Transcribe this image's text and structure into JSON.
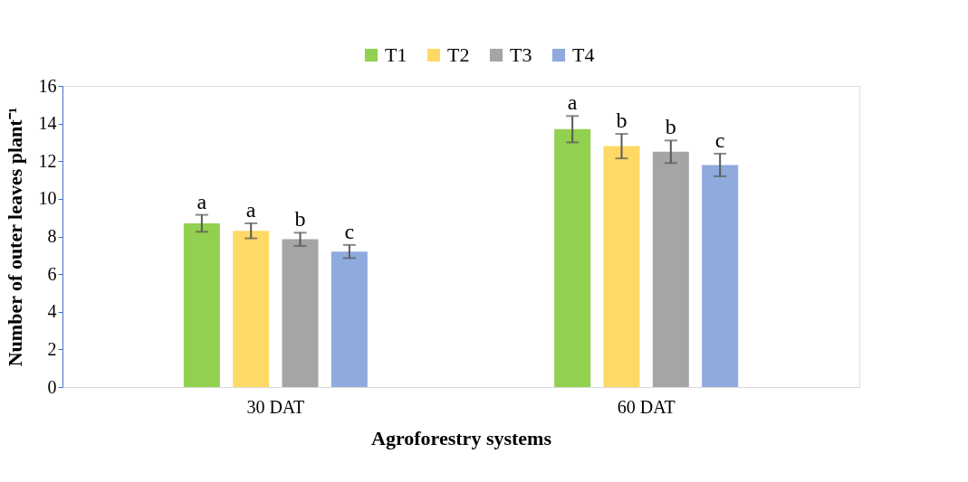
{
  "chart_data": {
    "type": "bar",
    "xlabel": "Agroforestry systems",
    "ylabel": "Number of outer leaves plant⁻¹",
    "categories": [
      "30 DAT",
      "60 DAT"
    ],
    "series": [
      {
        "name": "T1",
        "color": "#92d050",
        "values": [
          8.7,
          13.7
        ],
        "errors": [
          0.45,
          0.7
        ],
        "value_labels": [
          "a",
          "a"
        ]
      },
      {
        "name": "T2",
        "color": "#ffd966",
        "values": [
          8.3,
          12.8
        ],
        "errors": [
          0.4,
          0.65
        ],
        "value_labels": [
          "a",
          "b"
        ]
      },
      {
        "name": "T3",
        "color": "#a5a5a5",
        "values": [
          7.85,
          12.5
        ],
        "errors": [
          0.35,
          0.6
        ],
        "value_labels": [
          "b",
          "b"
        ]
      },
      {
        "name": "T4",
        "color": "#8faadc",
        "values": [
          7.2,
          11.8
        ],
        "errors": [
          0.35,
          0.6
        ],
        "value_labels": [
          "c",
          "c"
        ]
      }
    ],
    "ylim": [
      0,
      16
    ],
    "yticks": [
      0,
      2,
      4,
      6,
      8,
      10,
      12,
      14,
      16
    ],
    "grid": false,
    "legend": "top"
  }
}
